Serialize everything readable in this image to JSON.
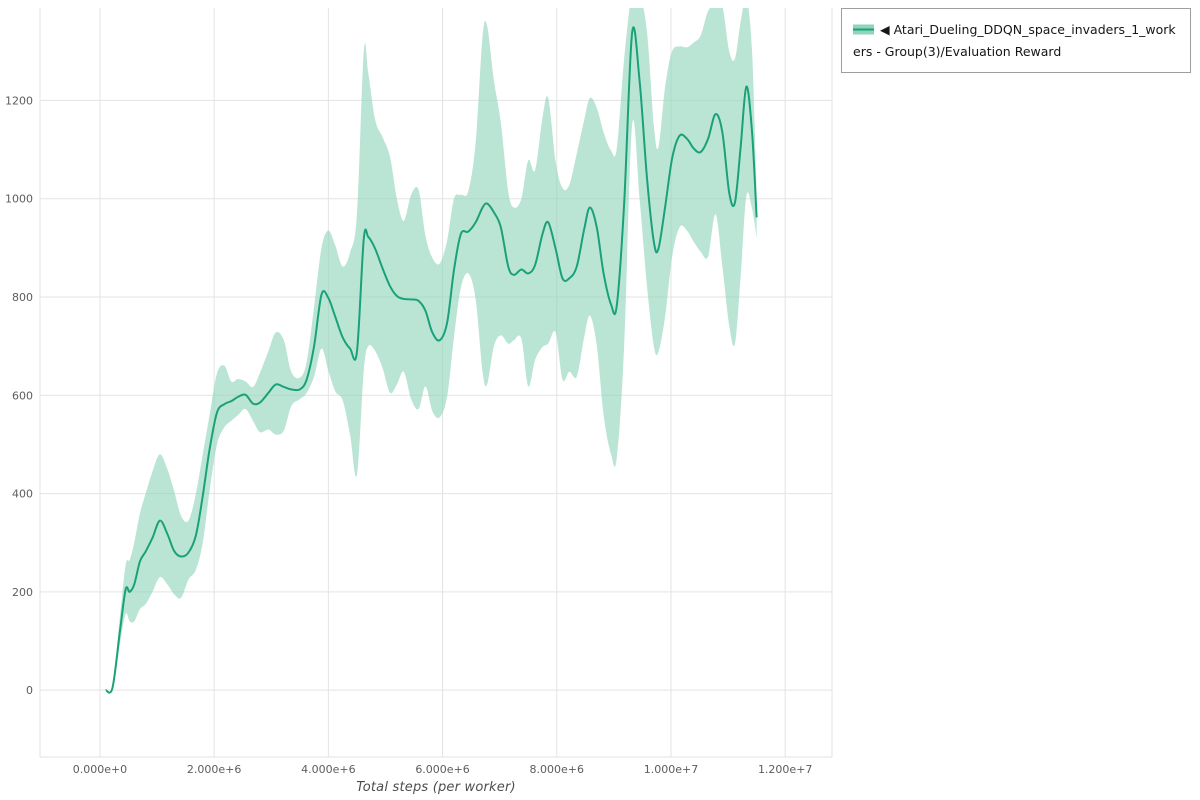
{
  "chart_data": {
    "type": "line",
    "title": "",
    "xlabel": "Total steps (per worker)",
    "ylabel": "",
    "grid": true,
    "grid_color": "#e3e3e3",
    "tick_color": "#5d5d5d",
    "background_color": "#ffffff",
    "xlim": [
      -1050000,
      12820000
    ],
    "ylim": [
      -136,
      1388
    ],
    "x_ticks": [
      {
        "value": 0,
        "label": "0.000e+0"
      },
      {
        "value": 2000000,
        "label": "2.000e+6"
      },
      {
        "value": 4000000,
        "label": "4.000e+6"
      },
      {
        "value": 6000000,
        "label": "6.000e+6"
      },
      {
        "value": 8000000,
        "label": "8.000e+6"
      },
      {
        "value": 10000000,
        "label": "1.000e+7"
      },
      {
        "value": 12000000,
        "label": "1.200e+7"
      }
    ],
    "y_ticks": [
      {
        "value": 0,
        "label": "0"
      },
      {
        "value": 200,
        "label": "200"
      },
      {
        "value": 400,
        "label": "400"
      },
      {
        "value": 600,
        "label": "600"
      },
      {
        "value": 800,
        "label": "800"
      },
      {
        "value": 1000,
        "label": "1000"
      },
      {
        "value": 1200,
        "label": "1200"
      }
    ],
    "legend_position": "top-right",
    "series": [
      {
        "name": "◀ Atari_Dueling_DDQN_space_invaders_1_workers - Group(3)/Evaluation Reward",
        "line_color": "#1aa179",
        "band_color": "#8fd5bb",
        "band_opacity": 0.62,
        "x": [
          100000,
          220000,
          350000,
          450000,
          520000,
          600000,
          700000,
          800000,
          920000,
          1050000,
          1180000,
          1300000,
          1420000,
          1550000,
          1680000,
          1800000,
          1920000,
          2050000,
          2180000,
          2300000,
          2420000,
          2550000,
          2680000,
          2800000,
          2950000,
          3080000,
          3220000,
          3350000,
          3500000,
          3620000,
          3750000,
          3880000,
          4000000,
          4120000,
          4250000,
          4380000,
          4500000,
          4620000,
          4700000,
          4820000,
          4950000,
          5080000,
          5200000,
          5320000,
          5450000,
          5580000,
          5700000,
          5820000,
          5950000,
          6080000,
          6200000,
          6320000,
          6450000,
          6580000,
          6700000,
          6780000,
          6900000,
          7020000,
          7150000,
          7250000,
          7380000,
          7500000,
          7620000,
          7750000,
          7850000,
          7980000,
          8100000,
          8220000,
          8350000,
          8480000,
          8580000,
          8700000,
          8820000,
          8950000,
          9050000,
          9180000,
          9320000,
          9450000,
          9580000,
          9700000,
          9780000,
          9900000,
          10020000,
          10150000,
          10280000,
          10400000,
          10520000,
          10650000,
          10780000,
          10900000,
          11020000,
          11120000,
          11220000,
          11320000,
          11420000,
          11500000
        ],
        "mean": [
          0,
          5,
          120,
          205,
          200,
          215,
          262,
          282,
          310,
          345,
          318,
          283,
          272,
          280,
          315,
          395,
          490,
          565,
          582,
          588,
          597,
          601,
          583,
          585,
          605,
          622,
          617,
          612,
          612,
          632,
          700,
          805,
          798,
          760,
          718,
          695,
          688,
          918,
          922,
          898,
          858,
          822,
          802,
          796,
          795,
          792,
          772,
          728,
          712,
          748,
          855,
          928,
          933,
          952,
          982,
          990,
          972,
          942,
          862,
          845,
          856,
          848,
          865,
          928,
          952,
          898,
          838,
          838,
          862,
          938,
          982,
          942,
          848,
          785,
          782,
          990,
          1338,
          1240,
          1042,
          912,
          898,
          985,
          1082,
          1128,
          1122,
          1102,
          1095,
          1122,
          1172,
          1135,
          1012,
          992,
          1105,
          1228,
          1135,
          962
        ],
        "lower": [
          0,
          0,
          95,
          155,
          140,
          140,
          165,
          175,
          200,
          230,
          215,
          195,
          188,
          225,
          245,
          300,
          405,
          500,
          535,
          548,
          560,
          572,
          548,
          525,
          530,
          520,
          528,
          578,
          592,
          605,
          638,
          695,
          650,
          608,
          590,
          520,
          438,
          650,
          700,
          690,
          655,
          605,
          622,
          648,
          592,
          572,
          618,
          568,
          555,
          598,
          718,
          818,
          848,
          795,
          648,
          622,
          700,
          722,
          705,
          712,
          715,
          618,
          672,
          698,
          705,
          728,
          632,
          648,
          638,
          718,
          762,
          702,
          560,
          480,
          472,
          700,
          1150,
          1000,
          822,
          700,
          688,
          762,
          882,
          942,
          935,
          912,
          892,
          882,
          968,
          862,
          742,
          705,
          842,
          1005,
          980,
          920
        ],
        "upper": [
          0,
          10,
          150,
          255,
          265,
          300,
          360,
          400,
          445,
          480,
          450,
          405,
          355,
          345,
          400,
          480,
          560,
          645,
          660,
          628,
          633,
          628,
          617,
          645,
          690,
          728,
          712,
          648,
          636,
          668,
          780,
          900,
          935,
          905,
          862,
          890,
          968,
          1300,
          1255,
          1160,
          1125,
          1085,
          1000,
          955,
          1008,
          1018,
          925,
          880,
          868,
          915,
          1000,
          1008,
          1015,
          1115,
          1330,
          1352,
          1240,
          1155,
          1015,
          982,
          1000,
          1078,
          1058,
          1165,
          1205,
          1075,
          1022,
          1028,
          1092,
          1160,
          1205,
          1185,
          1135,
          1098,
          1102,
          1285,
          1420,
          1415,
          1340,
          1150,
          1105,
          1230,
          1300,
          1310,
          1308,
          1318,
          1332,
          1382,
          1395,
          1392,
          1300,
          1285,
          1360,
          1408,
          1300,
          1010
        ]
      }
    ]
  },
  "legend": {
    "items": [
      {
        "label": "◀ Atari_Dueling_DDQN_space_invaders_1_workers - Group(3)/Evaluation Reward"
      }
    ]
  }
}
